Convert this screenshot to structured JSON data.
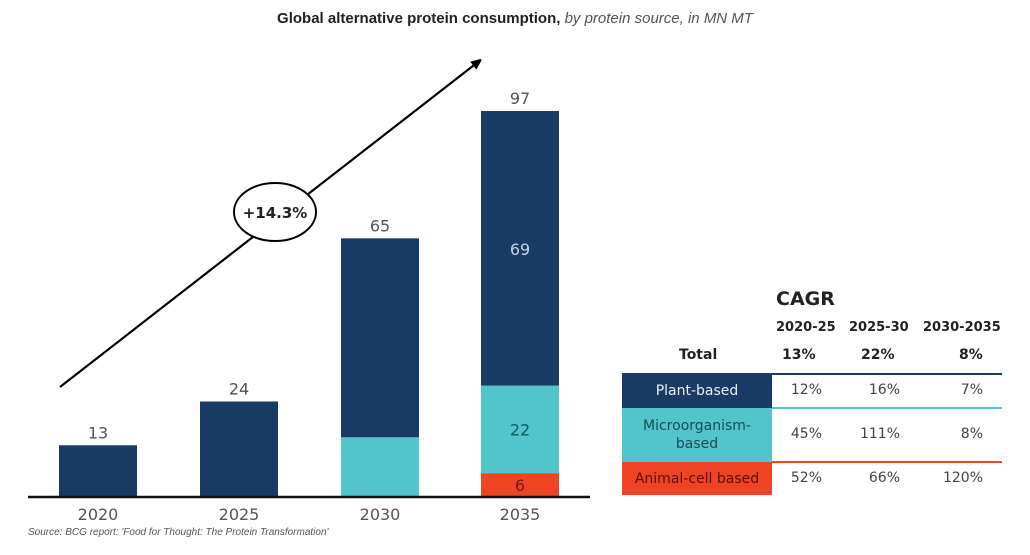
{
  "title": {
    "bold": "Global alternative protein consumption,",
    "italic": " by protein source, in MN MT"
  },
  "source": "Source: BCG report: 'Food for Thought: The Protein Transformation'",
  "colors": {
    "plant": "#1a3a66",
    "micro": "#52c5cb",
    "animal": "#ef4423",
    "axis": "#111111"
  },
  "chart_data": {
    "type": "bar",
    "stacked": true,
    "title": "Global alternative protein consumption, by protein source, in MN MT",
    "categories": [
      "2020",
      "2025",
      "2030",
      "2035"
    ],
    "series": [
      {
        "name": "Plant-based",
        "values": [
          13,
          24,
          50,
          69
        ]
      },
      {
        "name": "Microorganism-based",
        "values": [
          0,
          0,
          15,
          22
        ]
      },
      {
        "name": "Animal-cell based",
        "values": [
          0,
          0,
          0,
          6
        ]
      }
    ],
    "totals": [
      13,
      24,
      65,
      97
    ],
    "segment_labels": [
      {
        "category": "2035",
        "series": "Plant-based",
        "label": "69"
      },
      {
        "category": "2035",
        "series": "Microorganism-based",
        "label": "22"
      },
      {
        "category": "2035",
        "series": "Animal-cell based",
        "label": "6"
      }
    ],
    "annotation": "+14.3%",
    "xlabel": "",
    "ylabel": "",
    "ylim": [
      0,
      97
    ],
    "grid": false
  },
  "cagr": {
    "title": "CAGR",
    "periods": [
      "2020-25",
      "2025-30",
      "2030-2035"
    ],
    "total": {
      "label": "Total",
      "values": [
        "13%",
        "22%",
        "8%"
      ]
    },
    "rows": [
      {
        "label": "Plant-based",
        "values": [
          "12%",
          "16%",
          "7%"
        ]
      },
      {
        "label": "Microorganism-based",
        "values": [
          "45%",
          "111%",
          "8%"
        ]
      },
      {
        "label": "Animal-cell based",
        "values": [
          "52%",
          "66%",
          "120%"
        ]
      }
    ]
  }
}
